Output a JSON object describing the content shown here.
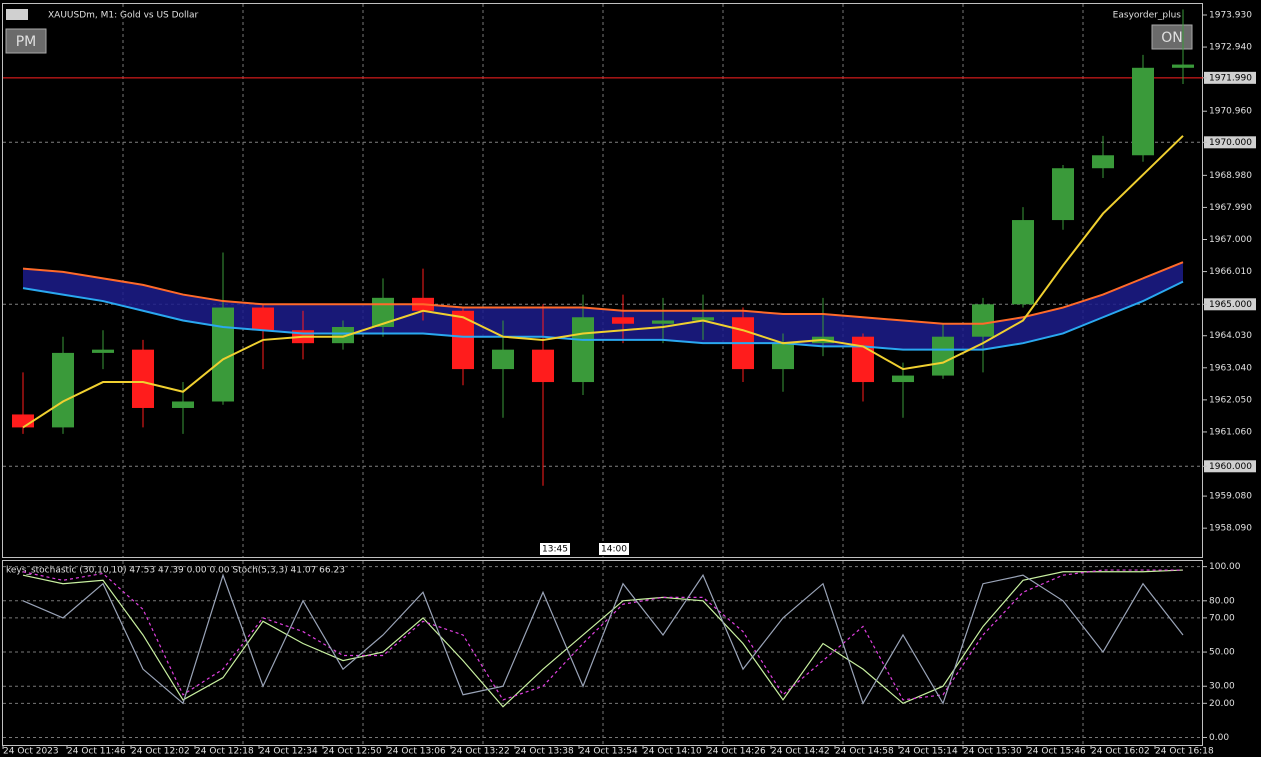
{
  "chart_data": [
    {
      "type": "candlestick",
      "title": "XAUUSDm, M1:  Gold vs US Dollar",
      "indicator": "Easyorder_plus",
      "buttons": [
        "PM",
        "ON"
      ],
      "cursor_labels": [
        "13:45",
        "14:00"
      ],
      "open": [
        1961.6,
        1961.2,
        1963.5,
        1963.6,
        1961.8,
        1962.0,
        1964.9,
        1964.2,
        1963.8,
        1964.3,
        1965.2,
        1964.8,
        1963.0,
        1963.6,
        1962.6,
        1964.6,
        1964.4,
        1964.5,
        1964.6,
        1963.0,
        1963.8,
        1964.0,
        1962.6,
        1962.8,
        1964.0,
        1965.0,
        1967.6,
        1969.2,
        1969.6,
        1972.3
      ],
      "high": [
        1962.9,
        1964.0,
        1964.2,
        1963.9,
        1962.6,
        1966.6,
        1965.0,
        1964.8,
        1964.5,
        1965.8,
        1966.1,
        1964.9,
        1964.5,
        1965.0,
        1965.3,
        1965.3,
        1965.2,
        1965.3,
        1964.9,
        1964.1,
        1965.2,
        1964.1,
        1963.2,
        1964.4,
        1965.2,
        1968.0,
        1969.3,
        1970.2,
        1972.7,
        1974.1
      ],
      "low": [
        1961.0,
        1961.0,
        1963.0,
        1961.2,
        1961.0,
        1961.9,
        1963.0,
        1963.3,
        1963.6,
        1964.0,
        1964.5,
        1962.5,
        1961.5,
        1959.4,
        1962.2,
        1963.8,
        1963.8,
        1963.9,
        1962.6,
        1962.3,
        1963.4,
        1962.0,
        1961.5,
        1962.7,
        1962.9,
        1964.9,
        1967.3,
        1968.9,
        1969.4,
        1971.8
      ],
      "close": [
        1961.2,
        1963.5,
        1963.6,
        1961.8,
        1962.0,
        1964.9,
        1964.2,
        1963.8,
        1964.3,
        1965.2,
        1964.8,
        1963.0,
        1963.6,
        1962.6,
        1964.6,
        1964.4,
        1964.5,
        1964.6,
        1963.0,
        1963.8,
        1964.0,
        1962.6,
        1962.8,
        1964.0,
        1965.0,
        1967.6,
        1969.2,
        1969.6,
        1972.3,
        1972.4
      ],
      "up_color": "#3a9a3a",
      "down_color": "#ff1c1c",
      "overlays": [
        {
          "color": "#ff6a2a",
          "values": [
            1966.1,
            1966.0,
            1965.8,
            1965.6,
            1965.3,
            1965.1,
            1965.0,
            1965.0,
            1965.0,
            1965.0,
            1965.0,
            1964.9,
            1964.9,
            1964.9,
            1964.9,
            1964.8,
            1964.8,
            1964.8,
            1964.8,
            1964.7,
            1964.7,
            1964.6,
            1964.5,
            1964.4,
            1964.4,
            1964.6,
            1964.9,
            1965.3,
            1965.8,
            1966.3
          ]
        },
        {
          "color": "#2aa8f0",
          "values": [
            1965.5,
            1965.3,
            1965.1,
            1964.8,
            1964.5,
            1964.3,
            1964.2,
            1964.1,
            1964.1,
            1964.1,
            1964.1,
            1964.0,
            1964.0,
            1964.0,
            1963.9,
            1963.9,
            1963.9,
            1963.8,
            1963.8,
            1963.8,
            1963.7,
            1963.7,
            1963.6,
            1963.6,
            1963.6,
            1963.8,
            1964.1,
            1964.6,
            1965.1,
            1965.7
          ]
        },
        {
          "color": "#f0d030",
          "values": [
            1961.2,
            1962.0,
            1962.6,
            1962.6,
            1962.3,
            1963.3,
            1963.9,
            1964.0,
            1964.0,
            1964.4,
            1964.8,
            1964.6,
            1964.0,
            1963.9,
            1964.1,
            1964.2,
            1964.3,
            1964.5,
            1964.2,
            1963.8,
            1963.9,
            1963.7,
            1963.0,
            1963.2,
            1963.8,
            1964.5,
            1966.2,
            1967.8,
            1969.0,
            1970.2
          ]
        }
      ],
      "band_color": "#1c1c8c",
      "ylim": [
        1957.2,
        1974.3
      ],
      "yticks": [
        {
          "value": 1973.93,
          "label": "1973.930"
        },
        {
          "value": 1972.94,
          "label": "1972.940"
        },
        {
          "value": 1971.99,
          "label": "1971.990"
        },
        {
          "value": 1970.96,
          "label": "1970.960"
        },
        {
          "value": 1970,
          "label": "1970.000"
        },
        {
          "value": 1968.98,
          "label": "1968.980"
        },
        {
          "value": 1967.99,
          "label": "1967.990"
        },
        {
          "value": 1967,
          "label": "1967.000"
        },
        {
          "value": 1966.01,
          "label": "1966.010"
        },
        {
          "value": 1965,
          "label": "1965.000"
        },
        {
          "value": 1964.03,
          "label": "1964.030"
        },
        {
          "value": 1963.04,
          "label": "1963.040"
        },
        {
          "value": 1962.05,
          "label": "1962.050"
        },
        {
          "value": 1961.06,
          "label": "1961.060"
        },
        {
          "value": 1960,
          "label": "1960.000"
        },
        {
          "value": 1959.08,
          "label": "1959.080"
        },
        {
          "value": 1958.09,
          "label": "1958.090"
        }
      ],
      "levels": [
        1971.99,
        1970,
        1965,
        1960
      ],
      "level_colors": [
        "#ff2020",
        "#808080",
        "#808080",
        "#808080"
      ]
    },
    {
      "type": "line",
      "title": "keys_stochastic (30,10,10) 47.53 47.39 0.00 0.00 Stoch(5,3,3) 41.07 66.23",
      "series": [
        {
          "color": "#c8f0a0",
          "values": [
            95,
            90,
            92,
            60,
            22,
            35,
            68,
            55,
            45,
            50,
            70,
            45,
            18,
            40,
            60,
            80,
            82,
            80,
            55,
            22,
            55,
            40,
            20,
            30,
            65,
            92,
            97,
            97,
            97,
            98
          ]
        },
        {
          "color": "#e040e0",
          "dash": true,
          "values": [
            97,
            92,
            96,
            75,
            25,
            40,
            70,
            62,
            48,
            48,
            68,
            60,
            22,
            30,
            55,
            78,
            82,
            82,
            62,
            25,
            45,
            65,
            22,
            25,
            60,
            85,
            95,
            98,
            98,
            98
          ]
        },
        {
          "color": "#9aa4b8",
          "values": [
            80,
            70,
            90,
            40,
            20,
            95,
            30,
            80,
            40,
            60,
            85,
            25,
            30,
            85,
            30,
            90,
            60,
            95,
            40,
            70,
            90,
            20,
            60,
            20,
            90,
            95,
            80,
            50,
            90,
            60
          ]
        }
      ],
      "ylim": [
        -4.4,
        103.3
      ],
      "yticks": [
        {
          "value": 100,
          "label": "100.00"
        },
        {
          "value": 80,
          "label": "80.00"
        },
        {
          "value": 70,
          "label": "70.00"
        },
        {
          "value": 50,
          "label": "50.00"
        },
        {
          "value": 30,
          "label": "30.00"
        },
        {
          "value": 20,
          "label": "20.00"
        },
        {
          "value": 0,
          "label": "0.00"
        }
      ],
      "xtick_labels": [
        "24 Oct 2023",
        "24 Oct 11:46",
        "24 Oct 12:02",
        "24 Oct 12:18",
        "24 Oct 12:34",
        "24 Oct 12:50",
        "24 Oct 13:06",
        "24 Oct 13:22",
        "24 Oct 13:38",
        "24 Oct 13:54",
        "24 Oct 14:10",
        "24 Oct 14:26",
        "24 Oct 14:42",
        "24 Oct 14:58",
        "24 Oct 15:14",
        "24 Oct 15:30",
        "24 Oct 15:46",
        "24 Oct 16:02",
        "24 Oct 16:18"
      ]
    }
  ]
}
